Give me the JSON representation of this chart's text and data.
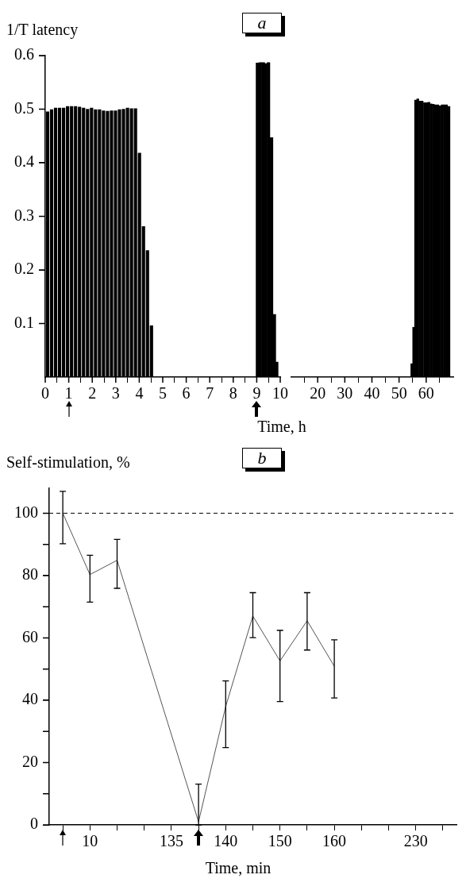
{
  "chart_data": [
    {
      "type": "bar",
      "title": "a",
      "ylabel": "1/T latency",
      "xlabel": "Time, h",
      "x": [
        0.1,
        0.27,
        0.44,
        0.61,
        0.78,
        0.95,
        1.12,
        1.29,
        1.46,
        1.63,
        1.8,
        1.97,
        2.14,
        2.31,
        2.48,
        2.65,
        2.82,
        2.99,
        3.16,
        3.33,
        3.5,
        3.67,
        3.84,
        4.01,
        4.18,
        4.35,
        4.52,
        9.03,
        9.15,
        9.28,
        9.38,
        9.5,
        9.63,
        9.75,
        9.85
      ],
      "values": [
        0.495,
        0.499,
        0.502,
        0.502,
        0.502,
        0.505,
        0.505,
        0.505,
        0.504,
        0.502,
        0.5,
        0.502,
        0.499,
        0.499,
        0.497,
        0.496,
        0.497,
        0.497,
        0.499,
        0.5,
        0.502,
        0.501,
        0.501,
        0.418,
        0.281,
        0.236,
        0.096,
        0.586,
        0.587,
        0.587,
        0.585,
        0.587,
        0.447,
        0.117,
        0.028
      ],
      "color": "#000000",
      "xlim": [
        0,
        10
      ],
      "xticks": [
        0,
        1,
        2,
        3,
        4,
        5,
        6,
        7,
        8,
        9,
        10
      ],
      "ylim": [
        0,
        0.6
      ],
      "yticks": [
        0.1,
        0.2,
        0.3,
        0.4,
        0.5,
        0.6
      ]
    },
    {
      "type": "bar",
      "tick_labels": "x",
      "x": [
        54.7,
        55.4,
        56.1,
        56.9,
        57.7,
        58.5,
        59.4,
        60.2,
        61,
        61.8,
        62.6,
        63.4,
        64.3,
        65.1,
        65.9,
        66.7,
        67.5,
        68.4
      ],
      "values": [
        0.025,
        0.093,
        0.517,
        0.519,
        0.515,
        0.515,
        0.512,
        0.512,
        0.513,
        0.51,
        0.509,
        0.508,
        0.508,
        0.506,
        0.508,
        0.508,
        0.508,
        0.505
      ],
      "color": "#000000",
      "xlim": [
        10,
        70
      ],
      "xticks": [
        20,
        30,
        40,
        50,
        60
      ],
      "ylim": [
        0,
        0.6
      ]
    },
    {
      "type": "line",
      "title": "b",
      "ylabel": "Self-stimulation, %",
      "xlabel": "Time, min",
      "categories": [
        null,
        "10",
        null,
        null,
        "135",
        null,
        "140",
        null,
        "150",
        null,
        "160",
        null,
        null,
        "230",
        null
      ],
      "values": [
        100,
        80.3,
        84.9,
        null,
        null,
        1,
        38,
        67,
        52.6,
        65.5,
        50.9,
        null,
        null,
        null,
        null
      ],
      "errors": [
        [
          90.2,
          107
        ],
        [
          71.5,
          86.5
        ],
        [
          75.9,
          91.6
        ],
        null,
        null,
        [
          0,
          13.1
        ],
        [
          24.8,
          46.2
        ],
        [
          60.1,
          74.5
        ],
        [
          39.6,
          62.4
        ],
        [
          56.1,
          74.5
        ],
        [
          40.7,
          59.4
        ],
        null,
        null,
        null,
        null
      ],
      "color": "#555555",
      "marker": "none",
      "ylim": [
        0,
        108
      ],
      "yticks": [
        0,
        {
          "value": 10,
          "label": null
        },
        20,
        {
          "value": 30,
          "label": null
        },
        40,
        {
          "value": 50,
          "label": null
        },
        60,
        {
          "value": 70,
          "label": null
        },
        80,
        {
          "value": 90,
          "label": null
        },
        100
      ],
      "ref_lines": [
        {
          "axis": "y",
          "value": 100,
          "line_style": "dashed",
          "color": "#000000"
        }
      ]
    }
  ]
}
